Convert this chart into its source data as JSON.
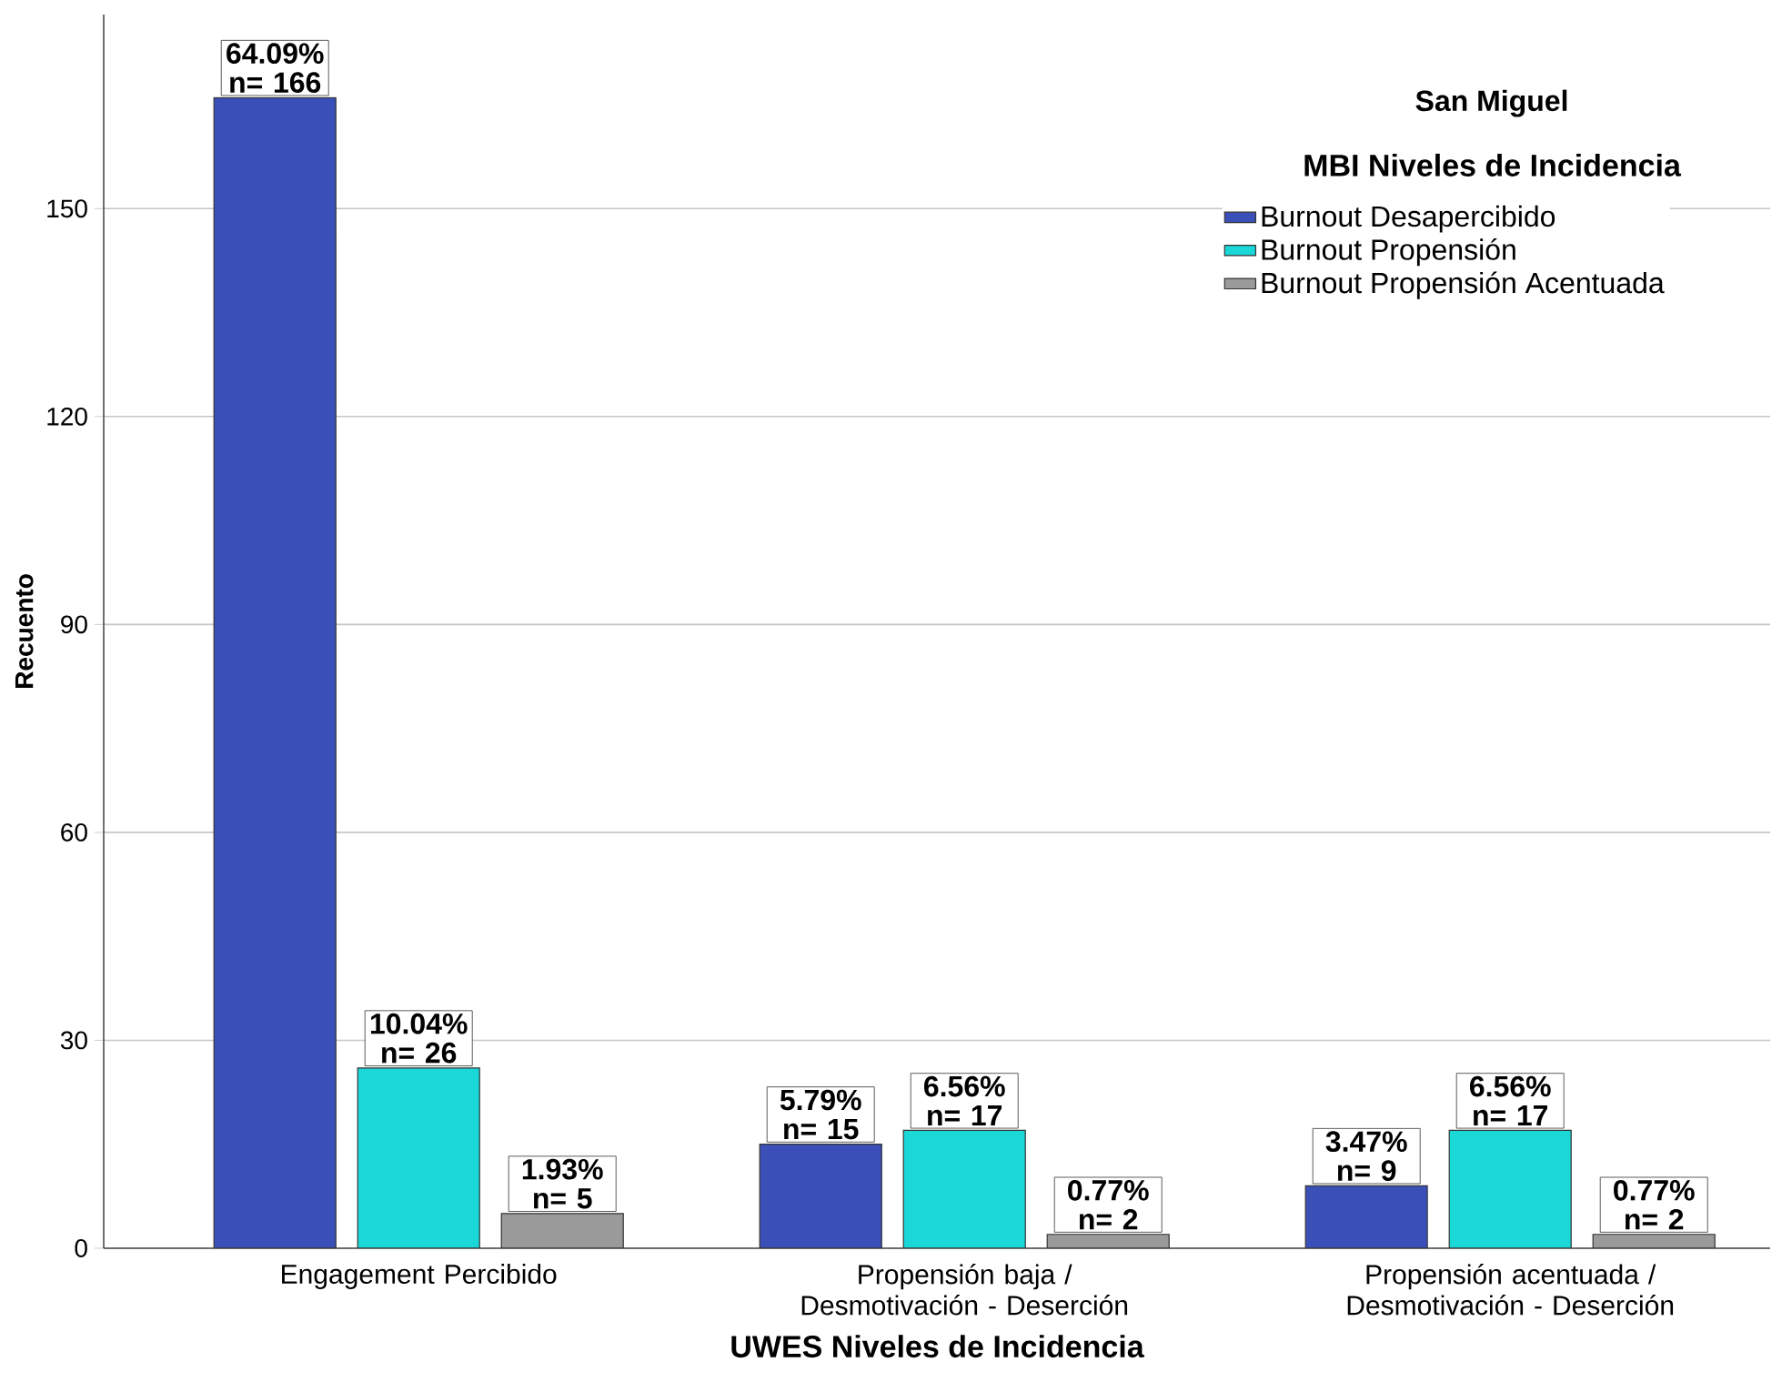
{
  "chart_data": {
    "type": "bar",
    "title": "San Miguel",
    "legend_title": "MBI Niveles de Incidencia",
    "xlabel": "UWES Niveles de Incidencia",
    "ylabel": "Recuento",
    "categories": [
      "Engagement Percibido",
      "Propensión baja / Desmotivación - Deserción",
      "Propensión acentuada / Desmotivación - Deserción"
    ],
    "series": [
      {
        "name": "Burnout Desapercibido",
        "color": "#3a50b8",
        "values": [
          166,
          15,
          9
        ],
        "value_labels": [
          "64.09% n= 166",
          "5.79% n= 15",
          "3.47% n= 9"
        ]
      },
      {
        "name": "Burnout Propensión",
        "color": "#1ad8d8",
        "values": [
          26,
          17,
          17
        ],
        "value_labels": [
          "10.04% n= 26",
          "6.56% n= 17",
          "6.56% n= 17"
        ]
      },
      {
        "name": "Burnout Propensión Acentuada",
        "color": "#9a9a9a",
        "values": [
          5,
          2,
          2
        ],
        "value_labels": [
          "1.93% n= 5",
          "0.77% n= 2",
          "0.77% n= 2"
        ]
      }
    ],
    "ylim": [
      0,
      178
    ],
    "yticks": [
      0,
      30,
      60,
      90,
      120,
      150
    ],
    "grid": "y",
    "legend": "top right"
  }
}
